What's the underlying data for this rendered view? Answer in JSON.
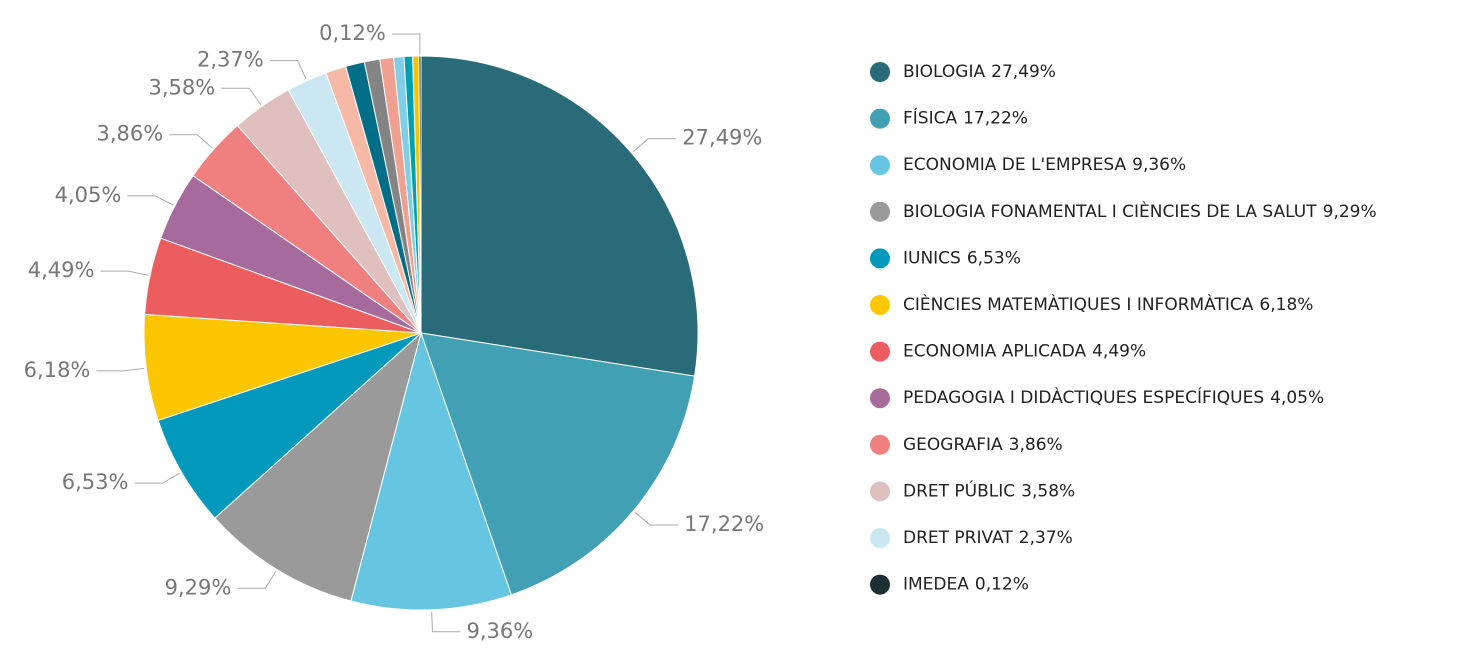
{
  "chart_data": {
    "type": "pie",
    "categories": [
      "BIOLOGIA",
      "FÍSICA",
      "ECONOMIA DE L'EMPRESA",
      "BIOLOGIA FONAMENTAL I CIÈNCIES DE LA SALUT",
      "IUNICS",
      "CIÈNCIES MATEMÀTIQUES I INFORMÀTICA",
      "ECONOMIA APLICADA",
      "PEDAGOGIA I DIDÀCTIQUES ESPECÍFIQUES",
      "GEOGRAFIA",
      "DRET PÚBLIC",
      "DRET PRIVAT",
      null,
      null,
      null,
      null,
      null,
      null,
      null,
      "IMEDEA"
    ],
    "values": [
      27.49,
      17.22,
      9.36,
      9.29,
      6.53,
      6.18,
      4.49,
      4.05,
      3.86,
      3.58,
      2.37,
      1.2,
      1.1,
      0.9,
      0.8,
      0.6,
      0.5,
      0.36,
      0.12
    ],
    "value_labels": [
      "27,49%",
      "17,22%",
      "9,36%",
      "9,29%",
      "6,53%",
      "6,18%",
      "4,49%",
      "4,05%",
      "3,86%",
      "3,58%",
      "2,37%",
      null,
      null,
      null,
      null,
      null,
      null,
      null,
      "0,12%"
    ],
    "colors": [
      "#2a6b7a",
      "#41a0b3",
      "#66c5e0",
      "#9a9a9a",
      "#0099bb",
      "#fcc600",
      "#ec5d60",
      "#a66a9c",
      "#f08080",
      "#e0c0bf",
      "#cbe7f1",
      "#f5b9a5",
      "#006e86",
      "#848484",
      "#f0a090",
      "#7fd0e6",
      "#00a0b0",
      "#f7c200",
      "#1c2f33"
    ],
    "legend": "right"
  }
}
